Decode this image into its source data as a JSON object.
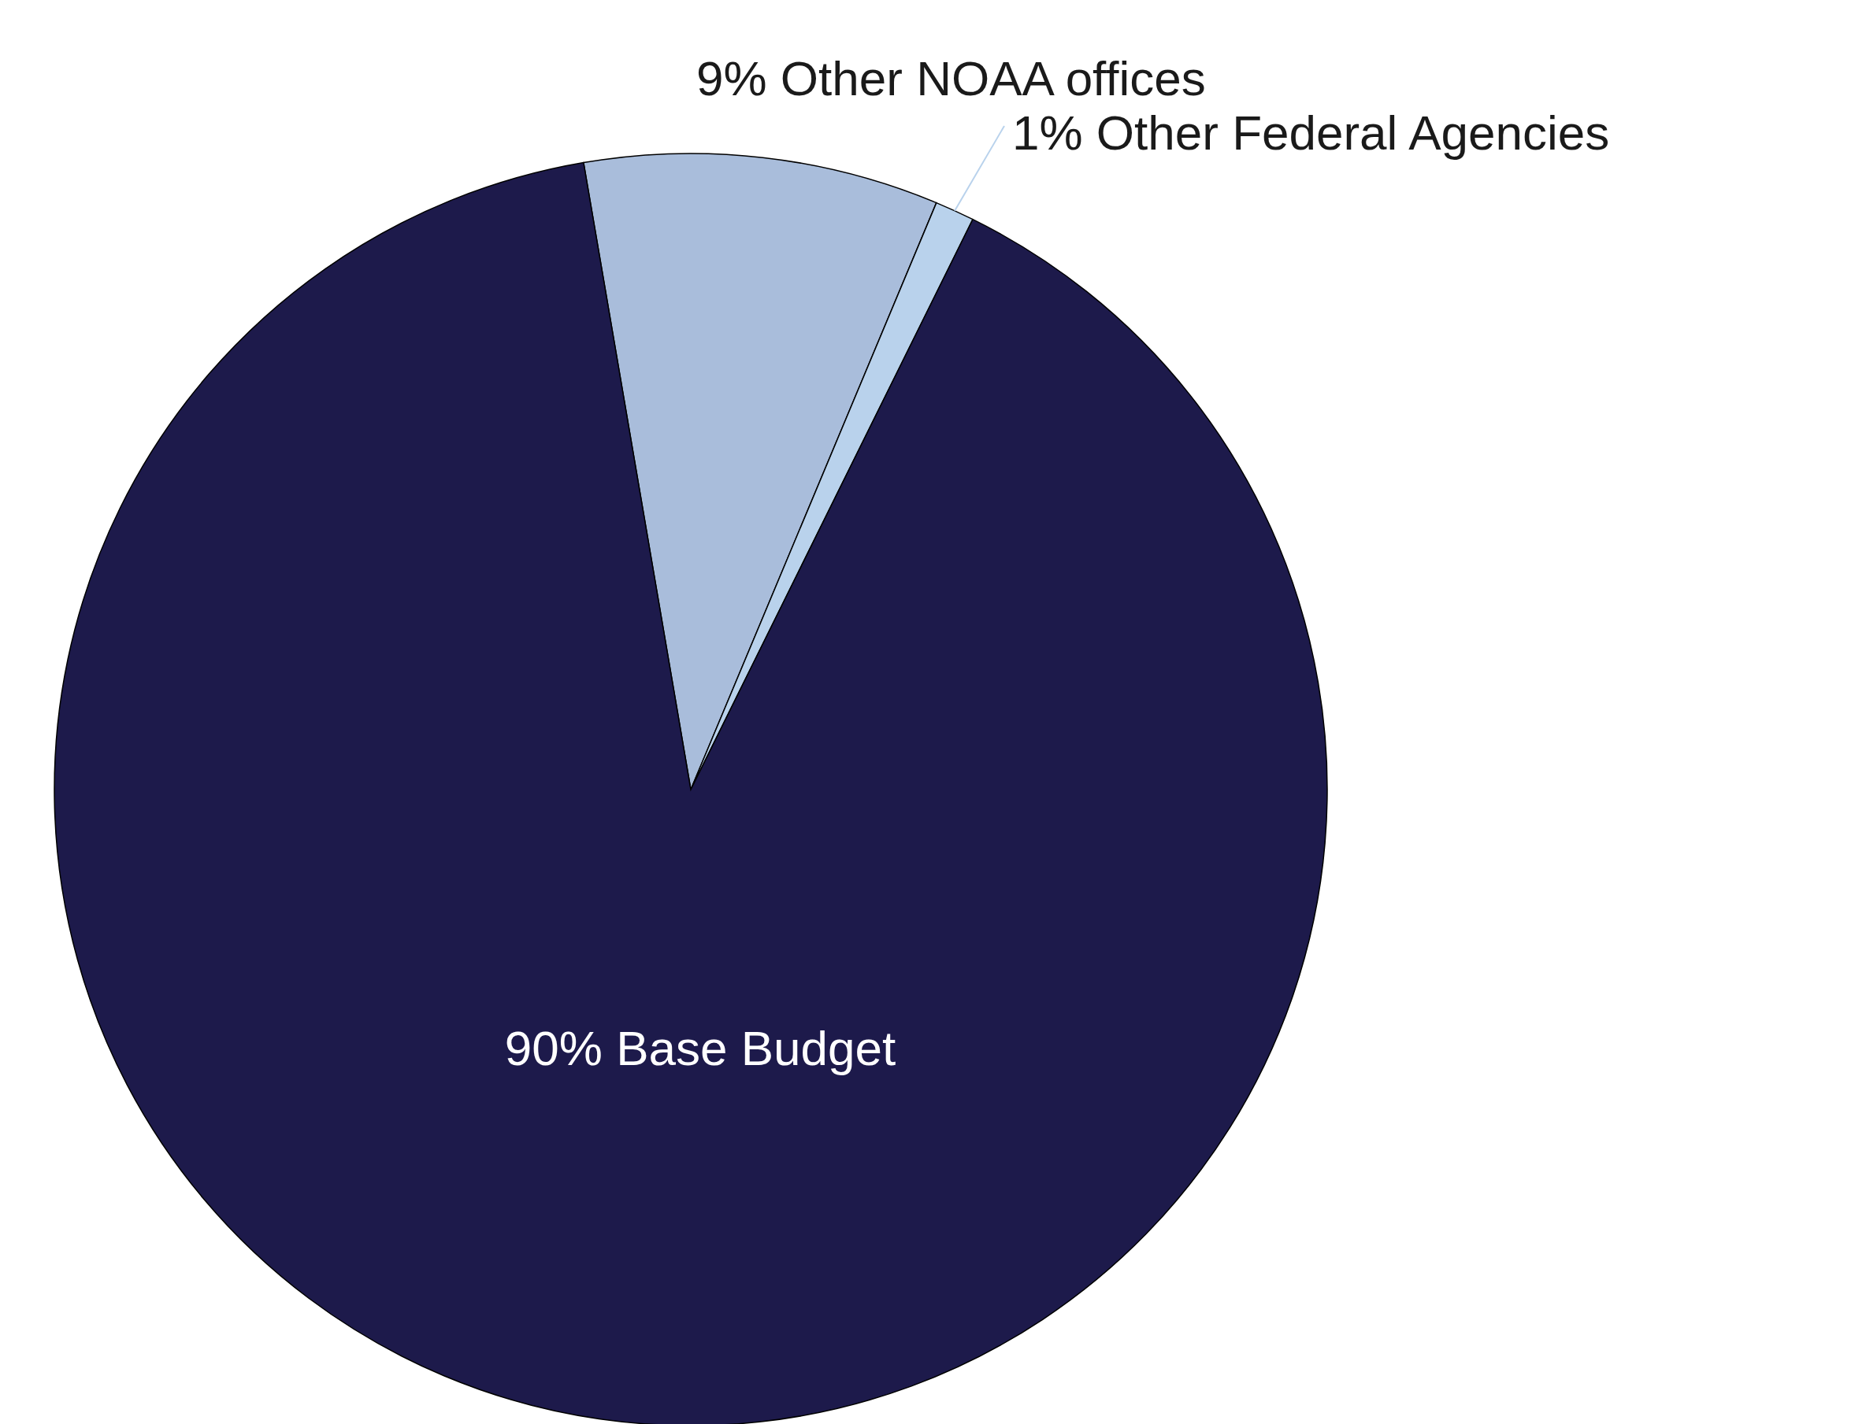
{
  "chart_data": {
    "type": "pie",
    "categories": [
      "Other NOAA offices",
      "Other Federal Agencies",
      "Base Budget"
    ],
    "values": [
      9,
      1,
      90
    ],
    "value_labels": [
      "9%",
      "1%",
      "90%"
    ],
    "colors": [
      "#a9bddb",
      "#b9d2ec",
      "#1d1a4b"
    ]
  }
}
